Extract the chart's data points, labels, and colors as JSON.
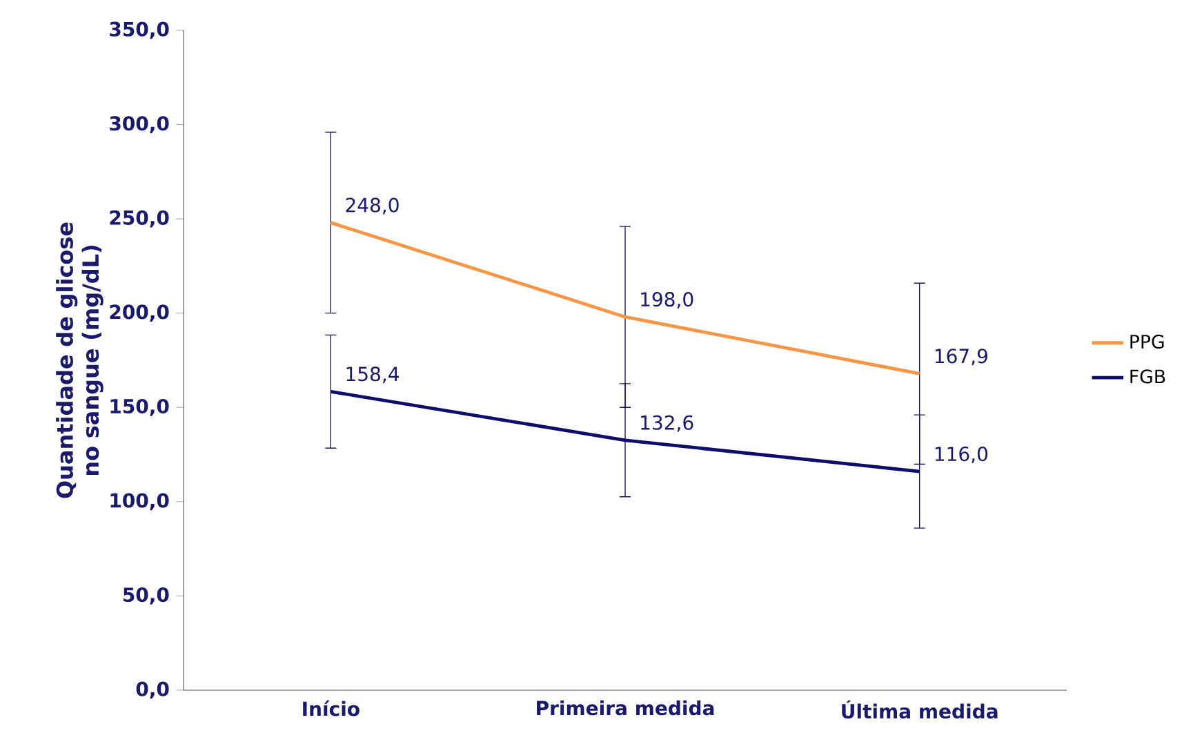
{
  "chart_data": {
    "type": "line",
    "ylabel": "Quantidade de glicose no sangue (mg/dL)",
    "categories": [
      "Início",
      "Primeira medida",
      "Última medida"
    ],
    "series": [
      {
        "name": "PPG",
        "color": "#f79646",
        "values": [
          248.0,
          198.0,
          167.9
        ],
        "value_labels": [
          "248,0",
          "198,0",
          "167,9"
        ],
        "errors": [
          48,
          48,
          48
        ]
      },
      {
        "name": "FGB",
        "color": "#0d0d6b",
        "values": [
          158.4,
          132.6,
          116.0
        ],
        "value_labels": [
          "158,4",
          "132,6",
          "116,0"
        ],
        "errors": [
          30,
          30,
          30
        ]
      }
    ],
    "ylim": [
      0,
      350
    ],
    "yticks": [
      {
        "value": 0,
        "label": "0,0"
      },
      {
        "value": 50,
        "label": "50,0"
      },
      {
        "value": 100,
        "label": "100,0"
      },
      {
        "value": 150,
        "label": "150,0"
      },
      {
        "value": 200,
        "label": "200,0"
      },
      {
        "value": 250,
        "label": "250,0"
      },
      {
        "value": 300,
        "label": "300,0"
      },
      {
        "value": 350,
        "label": "350,0"
      }
    ],
    "legend": "right",
    "grid": false,
    "marker": "none",
    "line_style": "solid"
  }
}
